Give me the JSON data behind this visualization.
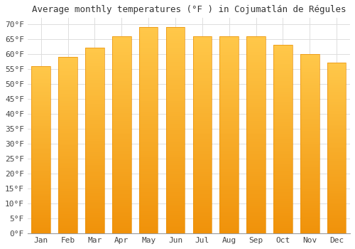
{
  "title": "Average monthly temperatures (°F ) in Cojumatlán de Régules",
  "months": [
    "Jan",
    "Feb",
    "Mar",
    "Apr",
    "May",
    "Jun",
    "Jul",
    "Aug",
    "Sep",
    "Oct",
    "Nov",
    "Dec"
  ],
  "values": [
    56,
    59,
    62,
    66,
    69,
    69,
    66,
    66,
    66,
    63,
    60,
    57
  ],
  "bar_color_top": "#FFC84A",
  "bar_color_bottom": "#F0920A",
  "bar_edge_color": "#E8900A",
  "background_color": "#FFFFFF",
  "grid_color": "#DDDDDD",
  "ylim": [
    0,
    72
  ],
  "yticks": [
    0,
    5,
    10,
    15,
    20,
    25,
    30,
    35,
    40,
    45,
    50,
    55,
    60,
    65,
    70
  ],
  "title_fontsize": 9,
  "tick_fontsize": 8
}
